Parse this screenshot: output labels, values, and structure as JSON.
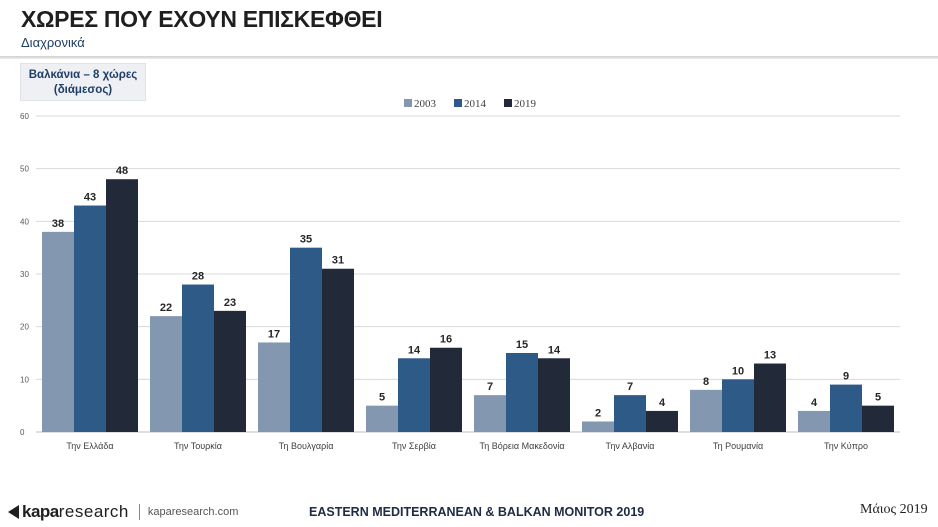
{
  "header": {
    "title": "ΧΩΡΕΣ ΠΟΥ ΕΧΟΥΝ ΕΠΙΣΚΕΦΘΕΙ",
    "subtitle": "Διαχρονικά"
  },
  "subset_label_line1": "Βαλκάνια – 8 χώρες",
  "subset_label_line2": "(διάμεσος)",
  "colors": {
    "2003": "#8497b0",
    "2014": "#2e5a88",
    "2019": "#222a3a",
    "grid": "#d9d9d9",
    "title_text": "#1f1f1f",
    "subtitle_text": "#1f3e66"
  },
  "chart_data": {
    "type": "bar",
    "categories": [
      "Την Ελλάδα",
      "Την Τουρκία",
      "Τη Βουλγαρία",
      "Την Σερβία",
      "Τη Βόρεια Μακεδονία",
      "Την Αλβανία",
      "Τη Ρουμανία",
      "Την Κύπρο"
    ],
    "series": [
      {
        "name": "2003",
        "values": [
          38,
          22,
          17,
          5,
          7,
          2,
          8,
          4
        ]
      },
      {
        "name": "2014",
        "values": [
          43,
          28,
          35,
          14,
          15,
          7,
          10,
          9
        ]
      },
      {
        "name": "2019",
        "values": [
          48,
          23,
          31,
          16,
          14,
          4,
          13,
          5
        ]
      }
    ],
    "ylim": [
      0,
      60
    ],
    "yticks": [
      0,
      10,
      20,
      30,
      40,
      50,
      60
    ],
    "grid": true,
    "legend_position": "top-center",
    "data_labels": true
  },
  "footer": {
    "logo_part1": "kapa",
    "logo_part2": "research",
    "url": "kaparesearch.com",
    "center_text": "EASTERN MEDITERRANEAN & BALKAN MONITOR 2019",
    "date": "Μάιος 2019"
  }
}
